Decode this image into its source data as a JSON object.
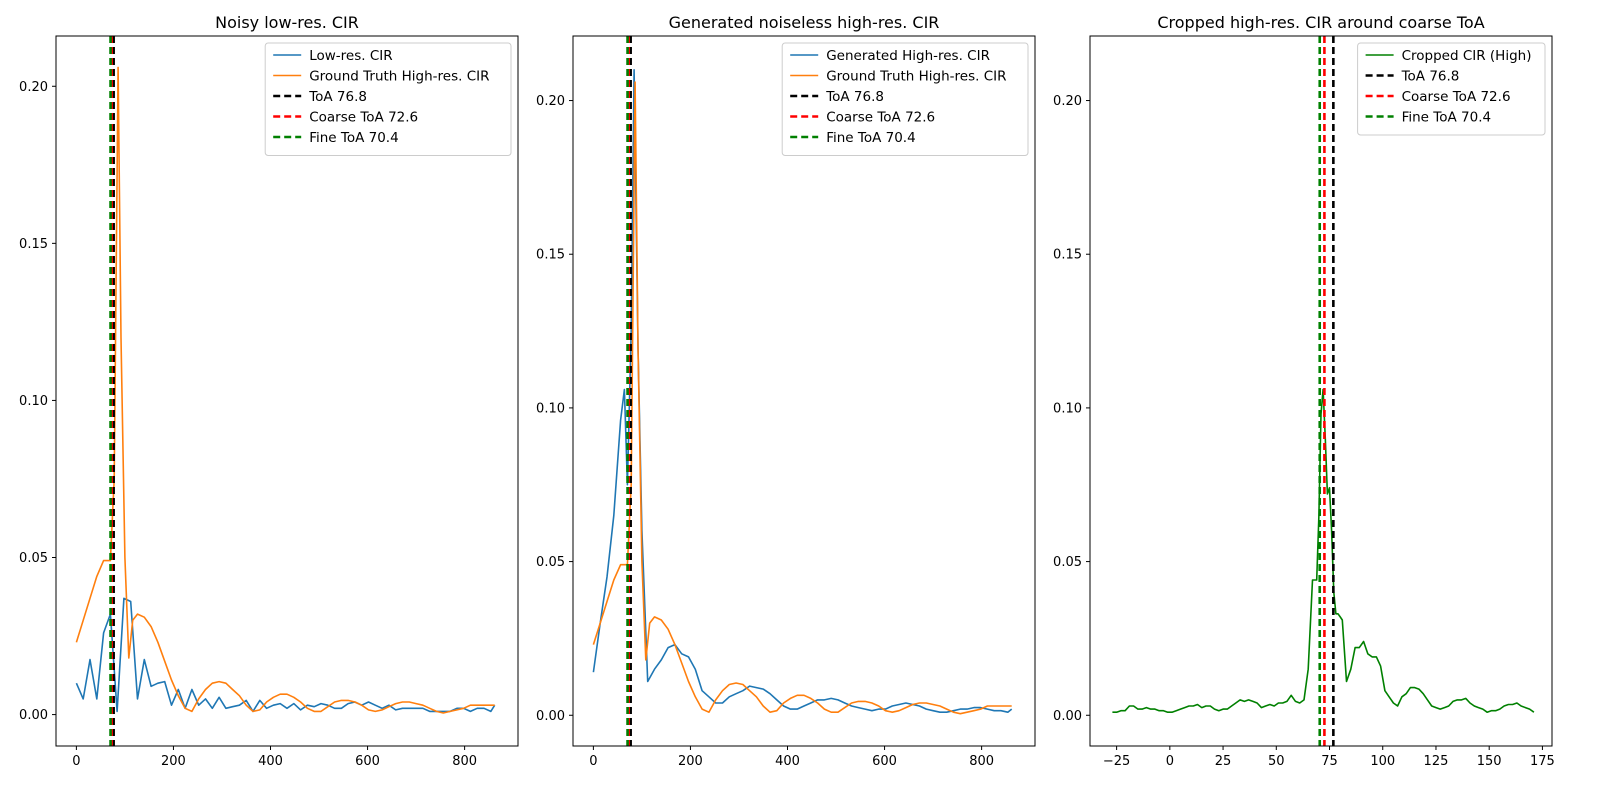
{
  "chart_data": [
    {
      "type": "line",
      "title": "Noisy low-res. CIR",
      "xlim": [
        -42,
        910
      ],
      "ylim": [
        -0.01,
        0.216
      ],
      "xticks": [
        0,
        200,
        400,
        600,
        800
      ],
      "yticks": [
        0.0,
        0.05,
        0.1,
        0.15,
        0.2
      ],
      "ytick_labels": [
        "0.00",
        "0.05",
        "0.10",
        "0.15",
        "0.20"
      ],
      "legend_position": "upper-right",
      "series": [
        {
          "name": "Low-res. CIR",
          "color": "#1f77b4",
          "style": "solid",
          "x": [
            0,
            14,
            28,
            42,
            56,
            70,
            84,
            98,
            112,
            126,
            140,
            154,
            168,
            182,
            196,
            210,
            224,
            238,
            252,
            266,
            280,
            294,
            308,
            322,
            336,
            350,
            364,
            378,
            392,
            406,
            420,
            434,
            448,
            462,
            476,
            490,
            504,
            518,
            532,
            546,
            560,
            574,
            588,
            602,
            616,
            630,
            644,
            658,
            672,
            686,
            700,
            714,
            728,
            742,
            756,
            770,
            784,
            798,
            812,
            826,
            840,
            854,
            862
          ],
          "y": [
            0.01,
            0.005,
            0.0175,
            0.005,
            0.026,
            0.032,
            0.001,
            0.037,
            0.036,
            0.005,
            0.0175,
            0.009,
            0.01,
            0.0105,
            0.003,
            0.008,
            0.002,
            0.008,
            0.003,
            0.005,
            0.002,
            0.0055,
            0.002,
            0.0025,
            0.003,
            0.0045,
            0.001,
            0.0045,
            0.002,
            0.003,
            0.0035,
            0.002,
            0.0035,
            0.0015,
            0.003,
            0.0025,
            0.0035,
            0.003,
            0.002,
            0.002,
            0.0035,
            0.004,
            0.003,
            0.004,
            0.003,
            0.002,
            0.003,
            0.0015,
            0.002,
            0.002,
            0.002,
            0.002,
            0.001,
            0.001,
            0.001,
            0.001,
            0.002,
            0.002,
            0.001,
            0.002,
            0.002,
            0.001,
            0.003
          ]
        },
        {
          "name": "Ground Truth High-res. CIR",
          "color": "#ff7f0e",
          "style": "solid",
          "x": [
            0,
            14,
            28,
            42,
            56,
            70,
            78,
            86,
            92,
            100,
            108,
            116,
            126,
            140,
            154,
            168,
            182,
            196,
            210,
            224,
            238,
            252,
            266,
            280,
            294,
            308,
            322,
            336,
            350,
            364,
            378,
            392,
            406,
            420,
            434,
            448,
            462,
            476,
            490,
            504,
            518,
            532,
            546,
            560,
            574,
            588,
            602,
            616,
            630,
            644,
            658,
            672,
            686,
            700,
            714,
            728,
            742,
            756,
            770,
            784,
            798,
            812,
            826,
            840,
            854,
            862
          ],
          "y": [
            0.023,
            0.03,
            0.037,
            0.044,
            0.049,
            0.049,
            0.075,
            0.206,
            0.12,
            0.05,
            0.018,
            0.03,
            0.032,
            0.031,
            0.028,
            0.023,
            0.017,
            0.011,
            0.006,
            0.002,
            0.001,
            0.005,
            0.008,
            0.01,
            0.0105,
            0.01,
            0.008,
            0.006,
            0.003,
            0.001,
            0.0015,
            0.004,
            0.0055,
            0.0065,
            0.0065,
            0.0055,
            0.004,
            0.002,
            0.001,
            0.001,
            0.0025,
            0.004,
            0.0045,
            0.0045,
            0.004,
            0.003,
            0.0015,
            0.001,
            0.0015,
            0.0025,
            0.0035,
            0.004,
            0.004,
            0.0035,
            0.003,
            0.002,
            0.001,
            0.0005,
            0.001,
            0.0015,
            0.002,
            0.003,
            0.003,
            0.003,
            0.003,
            0.003
          ]
        },
        {
          "name": "ToA 76.8",
          "color": "#000000",
          "style": "dashed",
          "vline": 76.8
        },
        {
          "name": "Coarse ToA 72.6",
          "color": "#ff0000",
          "style": "dashed",
          "vline": 72.6
        },
        {
          "name": "Fine ToA 70.4",
          "color": "#008000",
          "style": "dashed",
          "vline": 70.4
        }
      ]
    },
    {
      "type": "line",
      "title": "Generated noiseless high-res. CIR",
      "xlim": [
        -42,
        910
      ],
      "ylim": [
        -0.01,
        0.221
      ],
      "xticks": [
        0,
        200,
        400,
        600,
        800
      ],
      "yticks": [
        0.0,
        0.05,
        0.1,
        0.15,
        0.2
      ],
      "ytick_labels": [
        "0.00",
        "0.05",
        "0.10",
        "0.15",
        "0.20"
      ],
      "legend_position": "upper-right",
      "series": [
        {
          "name": "Generated High-res. CIR",
          "color": "#1f77b4",
          "style": "solid",
          "x": [
            0,
            14,
            28,
            42,
            56,
            64,
            70,
            78,
            84,
            92,
            100,
            112,
            126,
            140,
            154,
            168,
            182,
            196,
            210,
            224,
            238,
            252,
            266,
            280,
            294,
            308,
            322,
            336,
            350,
            364,
            378,
            392,
            406,
            420,
            434,
            448,
            462,
            476,
            490,
            504,
            518,
            532,
            546,
            560,
            574,
            588,
            602,
            616,
            630,
            644,
            658,
            672,
            686,
            700,
            714,
            728,
            742,
            756,
            770,
            784,
            798,
            812,
            826,
            840,
            854,
            862
          ],
          "y": [
            0.014,
            0.03,
            0.045,
            0.065,
            0.096,
            0.106,
            0.075,
            0.125,
            0.21,
            0.12,
            0.06,
            0.011,
            0.015,
            0.018,
            0.022,
            0.023,
            0.02,
            0.019,
            0.015,
            0.008,
            0.006,
            0.004,
            0.004,
            0.006,
            0.007,
            0.008,
            0.0095,
            0.009,
            0.0085,
            0.007,
            0.005,
            0.003,
            0.002,
            0.002,
            0.003,
            0.004,
            0.005,
            0.005,
            0.0055,
            0.005,
            0.004,
            0.003,
            0.0025,
            0.002,
            0.0015,
            0.002,
            0.002,
            0.003,
            0.0035,
            0.004,
            0.0035,
            0.003,
            0.002,
            0.0015,
            0.001,
            0.001,
            0.0015,
            0.002,
            0.002,
            0.0025,
            0.0025,
            0.002,
            0.0015,
            0.0015,
            0.001,
            0.002
          ]
        },
        {
          "name": "Ground Truth High-res. CIR",
          "color": "#ff7f0e",
          "style": "solid",
          "x": [
            0,
            14,
            28,
            42,
            56,
            70,
            78,
            86,
            92,
            100,
            108,
            116,
            126,
            140,
            154,
            168,
            182,
            196,
            210,
            224,
            238,
            252,
            266,
            280,
            294,
            308,
            322,
            336,
            350,
            364,
            378,
            392,
            406,
            420,
            434,
            448,
            462,
            476,
            490,
            504,
            518,
            532,
            546,
            560,
            574,
            588,
            602,
            616,
            630,
            644,
            658,
            672,
            686,
            700,
            714,
            728,
            742,
            756,
            770,
            784,
            798,
            812,
            826,
            840,
            854,
            862
          ],
          "y": [
            0.023,
            0.03,
            0.037,
            0.044,
            0.049,
            0.049,
            0.075,
            0.206,
            0.12,
            0.05,
            0.018,
            0.03,
            0.032,
            0.031,
            0.028,
            0.023,
            0.017,
            0.011,
            0.006,
            0.002,
            0.001,
            0.005,
            0.008,
            0.01,
            0.0105,
            0.01,
            0.008,
            0.006,
            0.003,
            0.001,
            0.0015,
            0.004,
            0.0055,
            0.0065,
            0.0065,
            0.0055,
            0.004,
            0.002,
            0.001,
            0.001,
            0.0025,
            0.004,
            0.0045,
            0.0045,
            0.004,
            0.003,
            0.0015,
            0.001,
            0.0015,
            0.0025,
            0.0035,
            0.004,
            0.004,
            0.0035,
            0.003,
            0.002,
            0.001,
            0.0005,
            0.001,
            0.0015,
            0.002,
            0.003,
            0.003,
            0.003,
            0.003,
            0.003
          ]
        },
        {
          "name": "ToA 76.8",
          "color": "#000000",
          "style": "dashed",
          "vline": 76.8
        },
        {
          "name": "Coarse ToA 72.6",
          "color": "#ff0000",
          "style": "dashed",
          "vline": 72.6
        },
        {
          "name": "Fine ToA 70.4",
          "color": "#008000",
          "style": "dashed",
          "vline": 70.4
        }
      ]
    },
    {
      "type": "line",
      "title": "Cropped high-res. CIR around coarse ToA",
      "xlim": [
        -37.5,
        179.5
      ],
      "ylim": [
        -0.01,
        0.221
      ],
      "xticks": [
        -25,
        0,
        25,
        50,
        75,
        100,
        125,
        150,
        175
      ],
      "yticks": [
        0.0,
        0.05,
        0.1,
        0.15,
        0.2
      ],
      "ytick_labels": [
        "0.00",
        "0.05",
        "0.10",
        "0.15",
        "0.20"
      ],
      "legend_position": "upper-right",
      "series": [
        {
          "name": "Cropped CIR (High)",
          "color": "#008000",
          "style": "solid",
          "x": [
            -27,
            -25,
            -23,
            -21,
            -19,
            -17,
            -15,
            -13,
            -11,
            -9,
            -7,
            -5,
            -3,
            -1,
            1,
            3,
            5,
            7,
            9,
            11,
            13,
            15,
            17,
            19,
            21,
            23,
            25,
            27,
            29,
            31,
            33,
            35,
            37,
            39,
            41,
            43,
            45,
            47,
            49,
            51,
            53,
            55,
            57,
            59,
            61,
            63,
            65,
            67,
            69,
            70,
            71,
            72,
            73,
            74,
            75,
            76,
            77,
            78,
            79,
            80,
            81,
            83,
            85,
            87,
            89,
            91,
            93,
            95,
            97,
            99,
            101,
            103,
            105,
            107,
            109,
            111,
            113,
            115,
            117,
            119,
            121,
            123,
            125,
            127,
            129,
            131,
            133,
            135,
            137,
            139,
            141,
            143,
            145,
            147,
            149,
            151,
            153,
            155,
            157,
            159,
            161,
            163,
            165,
            167,
            169,
            171
          ],
          "y": [
            0.001,
            0.001,
            0.0015,
            0.0015,
            0.003,
            0.003,
            0.002,
            0.002,
            0.0025,
            0.002,
            0.002,
            0.0015,
            0.0015,
            0.001,
            0.001,
            0.0015,
            0.002,
            0.0025,
            0.003,
            0.003,
            0.0035,
            0.0025,
            0.003,
            0.003,
            0.002,
            0.0015,
            0.002,
            0.002,
            0.003,
            0.004,
            0.005,
            0.0045,
            0.005,
            0.0045,
            0.004,
            0.0025,
            0.003,
            0.0035,
            0.003,
            0.004,
            0.004,
            0.0045,
            0.0065,
            0.0045,
            0.004,
            0.005,
            0.015,
            0.044,
            0.044,
            0.065,
            0.098,
            0.106,
            0.09,
            0.072,
            0.074,
            0.06,
            0.04,
            0.033,
            0.033,
            0.032,
            0.031,
            0.011,
            0.015,
            0.022,
            0.022,
            0.024,
            0.02,
            0.019,
            0.019,
            0.016,
            0.008,
            0.006,
            0.004,
            0.003,
            0.006,
            0.007,
            0.009,
            0.009,
            0.0085,
            0.007,
            0.005,
            0.003,
            0.0025,
            0.002,
            0.0025,
            0.003,
            0.0045,
            0.005,
            0.005,
            0.0055,
            0.004,
            0.003,
            0.0025,
            0.002,
            0.001,
            0.0015,
            0.0015,
            0.002,
            0.003,
            0.0035,
            0.0035,
            0.004,
            0.003,
            0.0025,
            0.002,
            0.001
          ]
        },
        {
          "name": "ToA 76.8",
          "color": "#000000",
          "style": "dashed",
          "vline": 76.8
        },
        {
          "name": "Coarse ToA 72.6",
          "color": "#ff0000",
          "style": "dashed",
          "vline": 72.6
        },
        {
          "name": "Fine ToA 70.4",
          "color": "#008000",
          "style": "dashed",
          "vline": 70.4
        }
      ]
    }
  ]
}
